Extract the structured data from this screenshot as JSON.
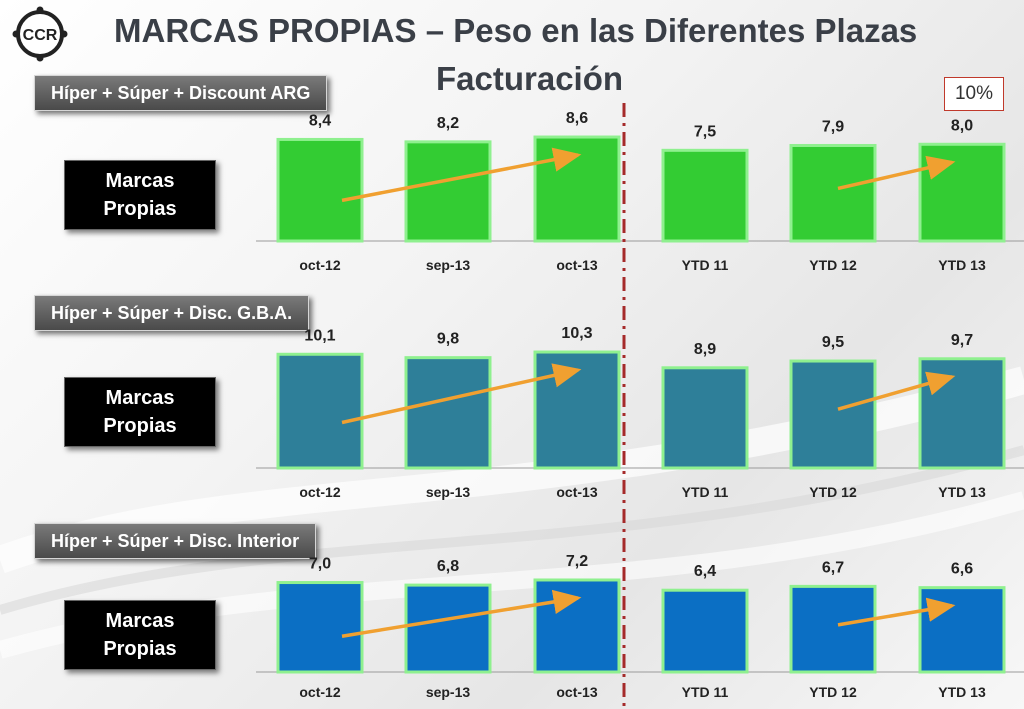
{
  "header": {
    "logo_text": "CCR",
    "title_line1": "MARCAS PROPIAS – Peso en las Diferentes Plazas",
    "title_line2": "Facturación",
    "percent_box": "10%"
  },
  "side_label": "Marcas Propias",
  "colors": {
    "chart1_bar": "#33cc33",
    "chart2_bar": "#2e7f99",
    "chart3_bar": "#0b6fc4",
    "bar_border": "#8ff08f",
    "arrow": "#f0a030",
    "divider": "#a52a2a"
  },
  "chart_data": [
    {
      "type": "bar",
      "region_label": "Híper + Súper + Discount ARG",
      "categories": [
        "oct-12",
        "sep-13",
        "oct-13",
        "YTD 11",
        "YTD 12",
        "YTD 13"
      ],
      "values": [
        8.4,
        8.2,
        8.6,
        7.5,
        7.9,
        8.0
      ],
      "value_labels": [
        "8,4",
        "8,2",
        "8,6",
        "7,5",
        "7,9",
        "8,0"
      ]
    },
    {
      "type": "bar",
      "region_label": "Híper + Súper + Disc. G.B.A.",
      "categories": [
        "oct-12",
        "sep-13",
        "oct-13",
        "YTD 11",
        "YTD 12",
        "YTD 13"
      ],
      "values": [
        10.1,
        9.8,
        10.3,
        8.9,
        9.5,
        9.7
      ],
      "value_labels": [
        "10,1",
        "9,8",
        "10,3",
        "8,9",
        "9,5",
        "9,7"
      ]
    },
    {
      "type": "bar",
      "region_label": "Híper + Súper + Disc. Interior",
      "categories": [
        "oct-12",
        "sep-13",
        "oct-13",
        "YTD 11",
        "YTD 12",
        "YTD 13"
      ],
      "values": [
        7.0,
        6.8,
        7.2,
        6.4,
        6.7,
        6.6
      ],
      "value_labels": [
        "7,0",
        "6,8",
        "7,2",
        "6,4",
        "6,7",
        "6,6"
      ]
    }
  ]
}
